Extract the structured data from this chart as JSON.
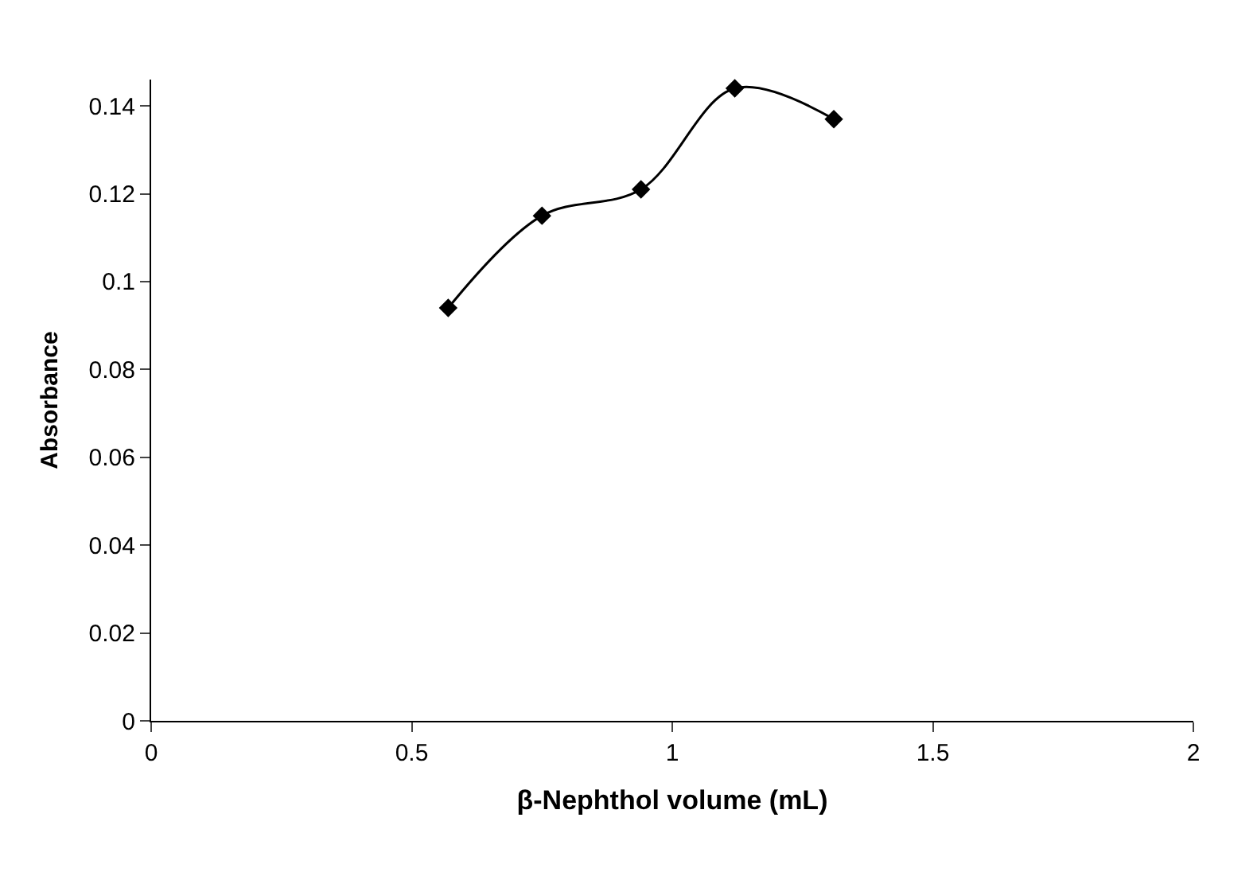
{
  "chart_data": {
    "type": "line",
    "xlabel": "β-Nephthol volume (mL)",
    "ylabel": "Absorbance",
    "x": [
      0.57,
      0.75,
      0.94,
      1.12,
      1.31
    ],
    "series": [
      {
        "color": "#000000",
        "values": [
          0.094,
          0.115,
          0.121,
          0.144,
          0.137
        ]
      }
    ],
    "xlim": [
      0,
      2
    ],
    "xticks": [
      0,
      0.5,
      1,
      1.5,
      2
    ],
    "ylim": [
      0,
      0.146
    ],
    "yticks": [
      0,
      0.02,
      0.04,
      0.06,
      0.08,
      0.1,
      0.12,
      0.14
    ],
    "grid": false,
    "legend": false,
    "marker": "diamond",
    "line_style": "solid"
  }
}
